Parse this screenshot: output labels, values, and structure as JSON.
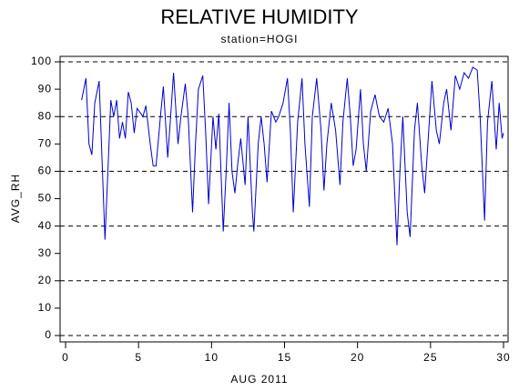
{
  "chart_data": {
    "type": "line",
    "title": "RELATIVE HUMIDITY",
    "subtitle": "station=HOGI",
    "x_label": "AUG 2011",
    "y_label": "AVG_RH",
    "x": [
      1.1,
      1.4,
      1.6,
      1.8,
      2.0,
      2.3,
      2.7,
      2.9,
      3.1,
      3.3,
      3.5,
      3.7,
      3.9,
      4.1,
      4.3,
      4.5,
      4.7,
      4.9,
      5.3,
      5.5,
      5.8,
      6.0,
      6.2,
      6.5,
      6.7,
      7.0,
      7.2,
      7.4,
      7.7,
      7.9,
      8.2,
      8.4,
      8.7,
      8.9,
      9.1,
      9.4,
      9.6,
      9.8,
      10.1,
      10.3,
      10.5,
      10.8,
      11.0,
      11.2,
      11.4,
      11.6,
      11.8,
      12.0,
      12.3,
      12.5,
      12.8,
      12.9,
      13.2,
      13.4,
      13.6,
      13.8,
      14.1,
      14.4,
      14.6,
      14.9,
      15.2,
      15.4,
      15.6,
      15.9,
      16.2,
      16.4,
      16.7,
      16.9,
      17.2,
      17.5,
      17.7,
      17.9,
      18.2,
      18.5,
      18.8,
      19.0,
      19.3,
      19.5,
      19.7,
      19.9,
      20.2,
      20.4,
      20.6,
      20.9,
      21.2,
      21.5,
      21.8,
      22.1,
      22.4,
      22.7,
      22.9,
      23.1,
      23.4,
      23.6,
      23.9,
      24.1,
      24.4,
      24.6,
      25.1,
      25.4,
      25.6,
      25.9,
      26.1,
      26.4,
      26.7,
      27.0,
      27.3,
      27.6,
      27.9,
      28.2,
      28.4,
      28.7,
      28.9,
      29.2,
      29.5,
      29.7,
      29.9,
      30.0
    ],
    "series": [
      {
        "name": "AVG_RH",
        "color": "#0000cc",
        "values": [
          86,
          94,
          70,
          66,
          85,
          93,
          35,
          60,
          86,
          80,
          86,
          72,
          78,
          72,
          89,
          85,
          74,
          83,
          80,
          84,
          70,
          62,
          62,
          80,
          91,
          65,
          80,
          96,
          70,
          80,
          92,
          80,
          45,
          70,
          90,
          95,
          74,
          48,
          80,
          68,
          81,
          38,
          60,
          85,
          60,
          52,
          63,
          72,
          55,
          80,
          45,
          38,
          70,
          80,
          70,
          56,
          82,
          78,
          80,
          85,
          94,
          75,
          45,
          78,
          94,
          70,
          47,
          80,
          94,
          75,
          53,
          70,
          85,
          75,
          55,
          78,
          94,
          80,
          62,
          68,
          90,
          70,
          60,
          82,
          88,
          80,
          78,
          83,
          70,
          33,
          60,
          80,
          45,
          36,
          75,
          85,
          62,
          52,
          93,
          75,
          70,
          85,
          90,
          75,
          95,
          90,
          96,
          94,
          98,
          97,
          80,
          42,
          78,
          93,
          68,
          85,
          72,
          74
        ]
      }
    ],
    "xlim": [
      0,
      30
    ],
    "xticks": [
      0,
      5,
      10,
      15,
      20,
      25,
      30
    ],
    "ylim": [
      0,
      100
    ],
    "yticks": [
      0,
      10,
      20,
      30,
      40,
      50,
      60,
      70,
      80,
      90,
      100
    ],
    "ygrid": [
      0,
      20,
      40,
      60,
      80,
      100
    ]
  }
}
